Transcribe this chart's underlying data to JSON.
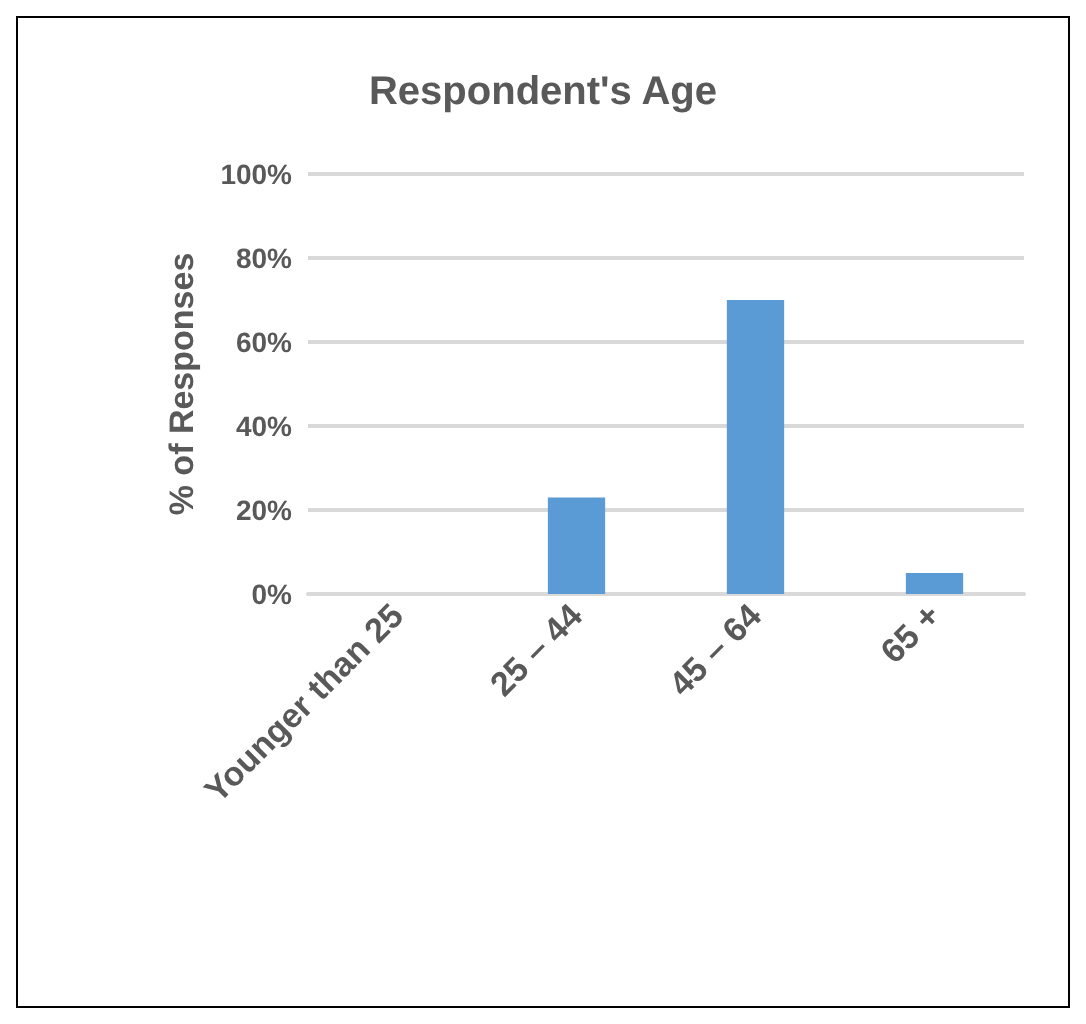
{
  "chart_data": {
    "type": "bar",
    "title": "Respondent's Age",
    "ylabel": "% of Responses",
    "categories": [
      "Younger than 25",
      "25 – 44",
      "45 – 64",
      "65 +"
    ],
    "values": [
      0,
      23,
      70,
      5
    ],
    "color": "#5b9bd5",
    "ylim": [
      0,
      100
    ],
    "yticks": [
      {
        "value": 0,
        "label": "0%"
      },
      {
        "value": 20,
        "label": "20%"
      },
      {
        "value": 40,
        "label": "40%"
      },
      {
        "value": 60,
        "label": "60%"
      },
      {
        "value": 80,
        "label": "80%"
      },
      {
        "value": 100,
        "label": "100%"
      }
    ],
    "grid": true
  }
}
